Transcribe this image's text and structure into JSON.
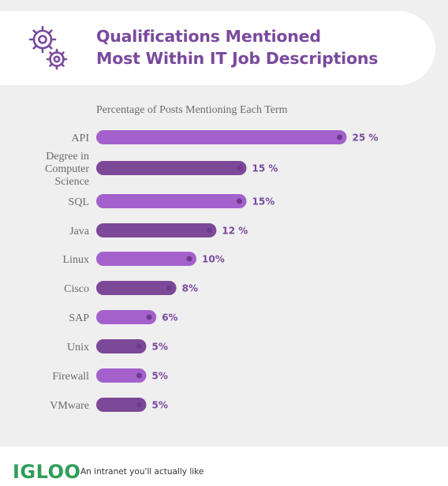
{
  "header": {
    "title_line1": "Qualifications Mentioned",
    "title_line2": "Most Within IT Job Descriptions",
    "icon": "gears-icon"
  },
  "colors": {
    "title": "#7a4a9c",
    "bar_light": "#a461cc",
    "bar_dark": "#7c4898",
    "dot": "#6e3a8e",
    "logo": "#2e9e57"
  },
  "chart_data": {
    "type": "bar",
    "orientation": "horizontal",
    "title": "Percentage of Posts Mentioning Each Term",
    "categories": [
      "API",
      "Degree in Computer Science",
      "SQL",
      "Java",
      "Linux",
      "Cisco",
      "SAP",
      "Unix",
      "Firewall",
      "VMware"
    ],
    "category_lines": [
      [
        "API"
      ],
      [
        "Degree in",
        "Computer",
        "Science"
      ],
      [
        "SQL"
      ],
      [
        "Java"
      ],
      [
        "Linux"
      ],
      [
        "Cisco"
      ],
      [
        "SAP"
      ],
      [
        "Unix"
      ],
      [
        "Firewall"
      ],
      [
        "VMware"
      ]
    ],
    "values": [
      25,
      15,
      15,
      12,
      10,
      8,
      6,
      5,
      5,
      5
    ],
    "value_labels": [
      "25 %",
      "15 %",
      "15%",
      "12 %",
      "10%",
      "8%",
      "6%",
      "5%",
      "5%",
      "5%"
    ],
    "unit": "%"
  },
  "footer": {
    "logo": "IGLOO",
    "tagline": "An intranet you'll actually like"
  }
}
